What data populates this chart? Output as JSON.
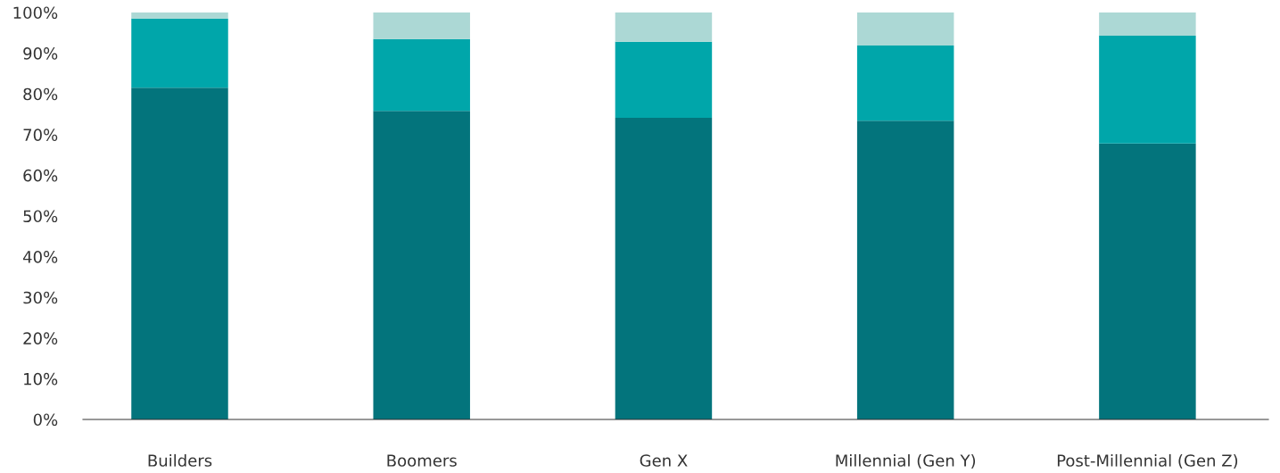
{
  "chart_data": {
    "type": "bar",
    "stacked": true,
    "categories": [
      "Builders",
      "Boomers",
      "Gen X",
      "Millennial (Gen Y)",
      "Post-Millennial (Gen Z)"
    ],
    "series": [
      {
        "color": "#03747c",
        "values": [
          81.5,
          75.8,
          74.1,
          73.4,
          67.8
        ]
      },
      {
        "color": "#00a6aa",
        "values": [
          17.0,
          17.7,
          18.7,
          18.5,
          26.5
        ]
      },
      {
        "color": "#acd8d5",
        "values": [
          1.5,
          6.5,
          7.2,
          8.1,
          5.7
        ]
      }
    ],
    "ylim": [
      0,
      100
    ],
    "yticks": [
      {
        "value": 0,
        "label": "0%"
      },
      {
        "value": 10,
        "label": "10%"
      },
      {
        "value": 20,
        "label": "20%"
      },
      {
        "value": 30,
        "label": "30%"
      },
      {
        "value": 40,
        "label": "40%"
      },
      {
        "value": 50,
        "label": "50%"
      },
      {
        "value": 60,
        "label": "60%"
      },
      {
        "value": 70,
        "label": "70%"
      },
      {
        "value": 80,
        "label": "80%"
      },
      {
        "value": 90,
        "label": "90%"
      },
      {
        "value": 100,
        "label": "100%"
      }
    ],
    "grid": false,
    "legend": false
  }
}
